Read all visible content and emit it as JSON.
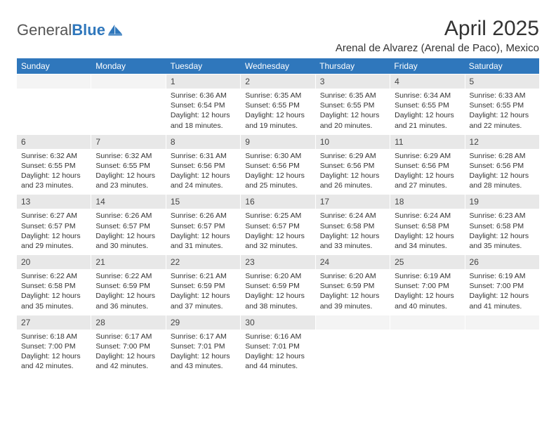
{
  "brand": {
    "name_gray": "General",
    "name_blue": "Blue"
  },
  "title": "April 2025",
  "location": "Arenal de Alvarez (Arenal de Paco), Mexico",
  "colors": {
    "header_bar": "#2f77bc",
    "daynum_bg": "#e8e8e8",
    "text": "#333333",
    "background": "#ffffff"
  },
  "typography": {
    "title_fontsize": 30,
    "location_fontsize": 15,
    "dow_fontsize": 12,
    "daynum_fontsize": 12,
    "body_fontsize": 10.5
  },
  "days_of_week": [
    "Sunday",
    "Monday",
    "Tuesday",
    "Wednesday",
    "Thursday",
    "Friday",
    "Saturday"
  ],
  "weeks": [
    [
      {
        "n": "",
        "sunrise": "",
        "sunset": "",
        "daylight": ""
      },
      {
        "n": "",
        "sunrise": "",
        "sunset": "",
        "daylight": ""
      },
      {
        "n": "1",
        "sunrise": "Sunrise: 6:36 AM",
        "sunset": "Sunset: 6:54 PM",
        "daylight": "Daylight: 12 hours and 18 minutes."
      },
      {
        "n": "2",
        "sunrise": "Sunrise: 6:35 AM",
        "sunset": "Sunset: 6:55 PM",
        "daylight": "Daylight: 12 hours and 19 minutes."
      },
      {
        "n": "3",
        "sunrise": "Sunrise: 6:35 AM",
        "sunset": "Sunset: 6:55 PM",
        "daylight": "Daylight: 12 hours and 20 minutes."
      },
      {
        "n": "4",
        "sunrise": "Sunrise: 6:34 AM",
        "sunset": "Sunset: 6:55 PM",
        "daylight": "Daylight: 12 hours and 21 minutes."
      },
      {
        "n": "5",
        "sunrise": "Sunrise: 6:33 AM",
        "sunset": "Sunset: 6:55 PM",
        "daylight": "Daylight: 12 hours and 22 minutes."
      }
    ],
    [
      {
        "n": "6",
        "sunrise": "Sunrise: 6:32 AM",
        "sunset": "Sunset: 6:55 PM",
        "daylight": "Daylight: 12 hours and 23 minutes."
      },
      {
        "n": "7",
        "sunrise": "Sunrise: 6:32 AM",
        "sunset": "Sunset: 6:55 PM",
        "daylight": "Daylight: 12 hours and 23 minutes."
      },
      {
        "n": "8",
        "sunrise": "Sunrise: 6:31 AM",
        "sunset": "Sunset: 6:56 PM",
        "daylight": "Daylight: 12 hours and 24 minutes."
      },
      {
        "n": "9",
        "sunrise": "Sunrise: 6:30 AM",
        "sunset": "Sunset: 6:56 PM",
        "daylight": "Daylight: 12 hours and 25 minutes."
      },
      {
        "n": "10",
        "sunrise": "Sunrise: 6:29 AM",
        "sunset": "Sunset: 6:56 PM",
        "daylight": "Daylight: 12 hours and 26 minutes."
      },
      {
        "n": "11",
        "sunrise": "Sunrise: 6:29 AM",
        "sunset": "Sunset: 6:56 PM",
        "daylight": "Daylight: 12 hours and 27 minutes."
      },
      {
        "n": "12",
        "sunrise": "Sunrise: 6:28 AM",
        "sunset": "Sunset: 6:56 PM",
        "daylight": "Daylight: 12 hours and 28 minutes."
      }
    ],
    [
      {
        "n": "13",
        "sunrise": "Sunrise: 6:27 AM",
        "sunset": "Sunset: 6:57 PM",
        "daylight": "Daylight: 12 hours and 29 minutes."
      },
      {
        "n": "14",
        "sunrise": "Sunrise: 6:26 AM",
        "sunset": "Sunset: 6:57 PM",
        "daylight": "Daylight: 12 hours and 30 minutes."
      },
      {
        "n": "15",
        "sunrise": "Sunrise: 6:26 AM",
        "sunset": "Sunset: 6:57 PM",
        "daylight": "Daylight: 12 hours and 31 minutes."
      },
      {
        "n": "16",
        "sunrise": "Sunrise: 6:25 AM",
        "sunset": "Sunset: 6:57 PM",
        "daylight": "Daylight: 12 hours and 32 minutes."
      },
      {
        "n": "17",
        "sunrise": "Sunrise: 6:24 AM",
        "sunset": "Sunset: 6:58 PM",
        "daylight": "Daylight: 12 hours and 33 minutes."
      },
      {
        "n": "18",
        "sunrise": "Sunrise: 6:24 AM",
        "sunset": "Sunset: 6:58 PM",
        "daylight": "Daylight: 12 hours and 34 minutes."
      },
      {
        "n": "19",
        "sunrise": "Sunrise: 6:23 AM",
        "sunset": "Sunset: 6:58 PM",
        "daylight": "Daylight: 12 hours and 35 minutes."
      }
    ],
    [
      {
        "n": "20",
        "sunrise": "Sunrise: 6:22 AM",
        "sunset": "Sunset: 6:58 PM",
        "daylight": "Daylight: 12 hours and 35 minutes."
      },
      {
        "n": "21",
        "sunrise": "Sunrise: 6:22 AM",
        "sunset": "Sunset: 6:59 PM",
        "daylight": "Daylight: 12 hours and 36 minutes."
      },
      {
        "n": "22",
        "sunrise": "Sunrise: 6:21 AM",
        "sunset": "Sunset: 6:59 PM",
        "daylight": "Daylight: 12 hours and 37 minutes."
      },
      {
        "n": "23",
        "sunrise": "Sunrise: 6:20 AM",
        "sunset": "Sunset: 6:59 PM",
        "daylight": "Daylight: 12 hours and 38 minutes."
      },
      {
        "n": "24",
        "sunrise": "Sunrise: 6:20 AM",
        "sunset": "Sunset: 6:59 PM",
        "daylight": "Daylight: 12 hours and 39 minutes."
      },
      {
        "n": "25",
        "sunrise": "Sunrise: 6:19 AM",
        "sunset": "Sunset: 7:00 PM",
        "daylight": "Daylight: 12 hours and 40 minutes."
      },
      {
        "n": "26",
        "sunrise": "Sunrise: 6:19 AM",
        "sunset": "Sunset: 7:00 PM",
        "daylight": "Daylight: 12 hours and 41 minutes."
      }
    ],
    [
      {
        "n": "27",
        "sunrise": "Sunrise: 6:18 AM",
        "sunset": "Sunset: 7:00 PM",
        "daylight": "Daylight: 12 hours and 42 minutes."
      },
      {
        "n": "28",
        "sunrise": "Sunrise: 6:17 AM",
        "sunset": "Sunset: 7:00 PM",
        "daylight": "Daylight: 12 hours and 42 minutes."
      },
      {
        "n": "29",
        "sunrise": "Sunrise: 6:17 AM",
        "sunset": "Sunset: 7:01 PM",
        "daylight": "Daylight: 12 hours and 43 minutes."
      },
      {
        "n": "30",
        "sunrise": "Sunrise: 6:16 AM",
        "sunset": "Sunset: 7:01 PM",
        "daylight": "Daylight: 12 hours and 44 minutes."
      },
      {
        "n": "",
        "sunrise": "",
        "sunset": "",
        "daylight": ""
      },
      {
        "n": "",
        "sunrise": "",
        "sunset": "",
        "daylight": ""
      },
      {
        "n": "",
        "sunrise": "",
        "sunset": "",
        "daylight": ""
      }
    ]
  ]
}
